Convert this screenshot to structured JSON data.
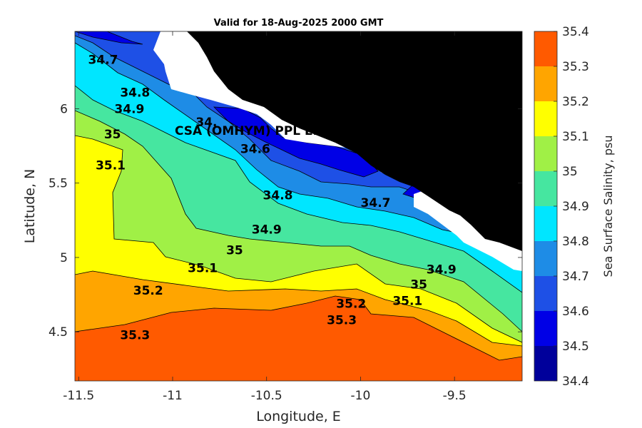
{
  "chart_data": {
    "type": "heatmap",
    "title": "Valid for 18-Aug-2025 2000 GMT",
    "xlabel": "Longitude, E",
    "ylabel": "Latitude, N",
    "colorbar_label": "Sea Surface Salinity, psu",
    "xlim": [
      -11.52,
      -9.14
    ],
    "ylim": [
      4.17,
      6.52
    ],
    "xticks": [
      -11.5,
      -11,
      -10.5,
      -10,
      -9.5
    ],
    "xtick_labels": [
      "-11.5",
      "-11",
      "-10.5",
      "-10",
      "-9.5"
    ],
    "yticks": [
      4.5,
      5,
      5.5,
      6
    ],
    "ytick_labels": [
      "4.5",
      "5",
      "5.5",
      "6"
    ],
    "colorbar": {
      "levels": [
        34.4,
        34.5,
        34.6,
        34.7,
        34.8,
        34.9,
        35.0,
        35.1,
        35.2,
        35.3,
        35.4
      ],
      "tick_labels": [
        "34.4",
        "34.5",
        "34.6",
        "34.7",
        "34.8",
        "34.9",
        "35",
        "35.1",
        "35.2",
        "35.3",
        "35.4"
      ],
      "colors": [
        "#00009b",
        "#0000e6",
        "#1e50e6",
        "#1e8ce6",
        "#00e6ff",
        "#46e6a0",
        "#a0f046",
        "#ffff00",
        "#ffa500",
        "#ff5a00"
      ]
    },
    "land_color": "#000000",
    "contour_labels": [
      {
        "text": "34.7",
        "lon": -11.37,
        "lat": 6.33
      },
      {
        "text": "34.8",
        "lon": -11.2,
        "lat": 6.11
      },
      {
        "text": "34.9",
        "lon": -11.23,
        "lat": 6.0
      },
      {
        "text": "35",
        "lon": -11.32,
        "lat": 5.83
      },
      {
        "text": "35.1",
        "lon": -11.33,
        "lat": 5.62
      },
      {
        "text": "34.",
        "lon": -10.82,
        "lat": 5.91
      },
      {
        "text": "34.6",
        "lon": -10.56,
        "lat": 5.73
      },
      {
        "text": "34.8",
        "lon": -10.44,
        "lat": 5.42
      },
      {
        "text": "34.7",
        "lon": -9.92,
        "lat": 5.37
      },
      {
        "text": "34.9",
        "lon": -10.5,
        "lat": 5.19
      },
      {
        "text": "35",
        "lon": -10.67,
        "lat": 5.05
      },
      {
        "text": "35.1",
        "lon": -10.84,
        "lat": 4.93
      },
      {
        "text": "34.9",
        "lon": -9.57,
        "lat": 4.92
      },
      {
        "text": "35",
        "lon": -9.69,
        "lat": 4.82
      },
      {
        "text": "35.1",
        "lon": -9.75,
        "lat": 4.71
      },
      {
        "text": "35.2",
        "lon": -11.13,
        "lat": 4.78
      },
      {
        "text": "35.2",
        "lon": -10.05,
        "lat": 4.69
      },
      {
        "text": "35.3",
        "lon": -10.1,
        "lat": 4.58
      },
      {
        "text": "35.3",
        "lon": -11.2,
        "lat": 4.48
      }
    ],
    "station": {
      "label": "CSA (OMHYM) PPL EB",
      "lon": -10.28,
      "lat": 5.92
    },
    "grid": false
  }
}
